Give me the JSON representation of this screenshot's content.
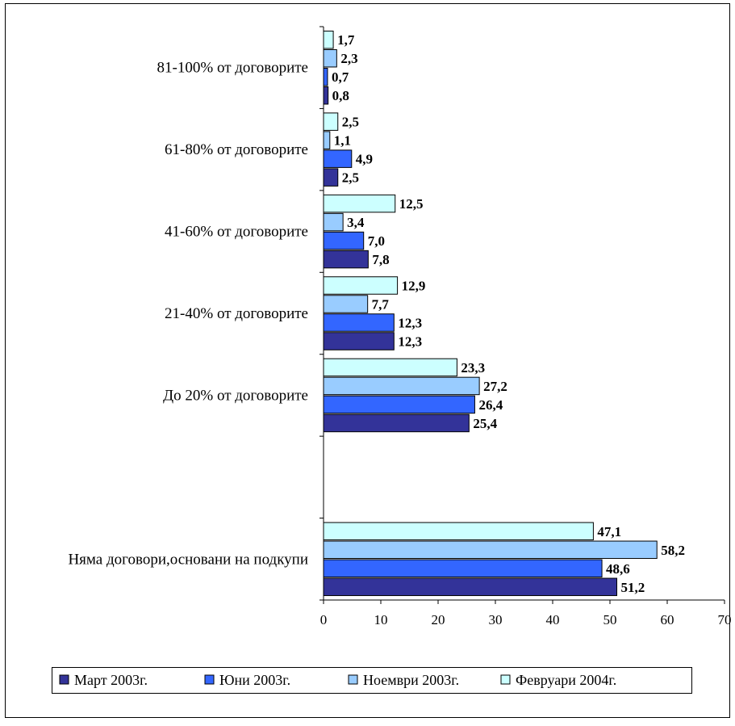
{
  "chart_data": {
    "type": "bar",
    "orientation": "horizontal",
    "categories": [
      "81-100% от договорите",
      "61-80% от договорите",
      "41-60% от договорите",
      "21-40% от договорите",
      "До 20% от договорите",
      "",
      "Няма договори,основани на подкупи"
    ],
    "series": [
      {
        "name": "Март 2003г.",
        "color": "#333399",
        "values": [
          0.8,
          2.5,
          7.8,
          12.3,
          25.4,
          null,
          51.2
        ],
        "labels": [
          "0,8",
          "2,5",
          "7,8",
          "12,3",
          "25,4",
          "",
          "51,2"
        ]
      },
      {
        "name": "Юни 2003г.",
        "color": "#3366FF",
        "values": [
          0.7,
          4.9,
          7.0,
          12.3,
          26.4,
          null,
          48.6
        ],
        "labels": [
          "0,7",
          "4,9",
          "7,0",
          "12,3",
          "26,4",
          "",
          "48,6"
        ]
      },
      {
        "name": "Ноември 2003г.",
        "color": "#99CCFF",
        "values": [
          2.3,
          1.1,
          3.4,
          7.7,
          27.2,
          null,
          58.2
        ],
        "labels": [
          "2,3",
          "1,1",
          "3,4",
          "7,7",
          "27,2",
          "",
          "58,2"
        ]
      },
      {
        "name": "Февруари 2004г.",
        "color": "#CCFFFF",
        "values": [
          1.7,
          2.5,
          12.5,
          12.9,
          23.3,
          null,
          47.1
        ],
        "labels": [
          "1,7",
          "2,5",
          "12,5",
          "12,9",
          "23,3",
          "",
          "47,1"
        ]
      }
    ],
    "xlim": [
      0,
      70
    ],
    "xticks": [
      0,
      10,
      20,
      30,
      40,
      50,
      60,
      70
    ],
    "xtick_labels": [
      "0",
      "10",
      "20",
      "30",
      "40",
      "50",
      "60",
      "70"
    ],
    "grid": false,
    "legend_placement": "bottom",
    "legend_order": [
      0,
      1,
      2,
      3
    ]
  }
}
